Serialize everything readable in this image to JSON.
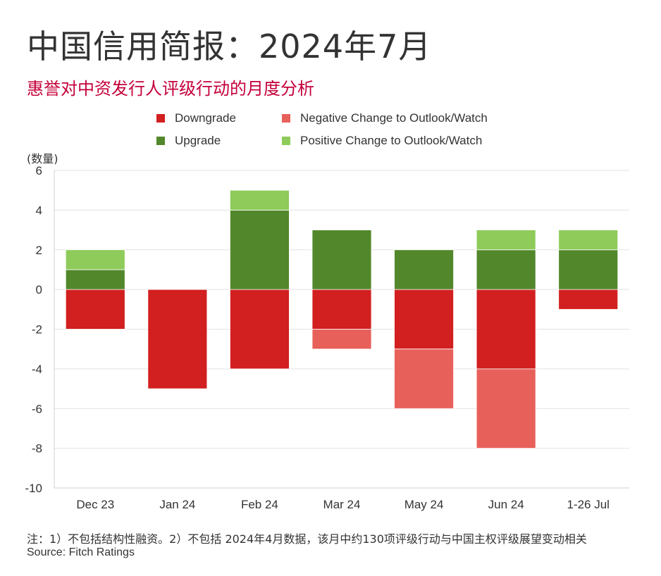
{
  "header": {
    "title": "中国信用简报：2024年7月",
    "subtitle": "惠誉对中资发行人评级行动的月度分析"
  },
  "legend": [
    {
      "label": "Downgrade",
      "color": "#d21f1f"
    },
    {
      "label": "Negative Change to Outlook/Watch",
      "color": "#e8605a"
    },
    {
      "label": "Upgrade",
      "color": "#52882b"
    },
    {
      "label": "Positive Change to Outlook/Watch",
      "color": "#8ecb5a"
    }
  ],
  "chart_data": {
    "type": "bar",
    "stacked": true,
    "ylabel": "(数量)",
    "ylim": [
      -10,
      6
    ],
    "yticks": [
      6,
      4,
      2,
      0,
      -2,
      -4,
      -6,
      -8,
      -10
    ],
    "grid": true,
    "categories": [
      "Dec 23",
      "Jan 24",
      "Feb 24",
      "Mar 24",
      "May 24",
      "Jun 24",
      "1-26 Jul"
    ],
    "series": [
      {
        "name": "Downgrade",
        "color": "#d21f1f",
        "values": [
          -2,
          -5,
          -4,
          -2,
          -3,
          -4,
          -1
        ]
      },
      {
        "name": "Negative Change to Outlook/Watch",
        "color": "#e8605a",
        "values": [
          0,
          0,
          0,
          -1,
          -3,
          -4,
          0
        ]
      },
      {
        "name": "Upgrade",
        "color": "#52882b",
        "values": [
          1,
          0,
          4,
          3,
          2,
          2,
          2
        ]
      },
      {
        "name": "Positive Change to Outlook/Watch",
        "color": "#8ecb5a",
        "values": [
          1,
          0,
          1,
          0,
          0,
          1,
          1
        ]
      }
    ]
  },
  "footer": {
    "note": "注：1）不包括结构性融资。2）不包括 2024年4月数据，该月中约130项评级行动与中国主权评级展望变动相关",
    "source": "Source: Fitch Ratings"
  }
}
